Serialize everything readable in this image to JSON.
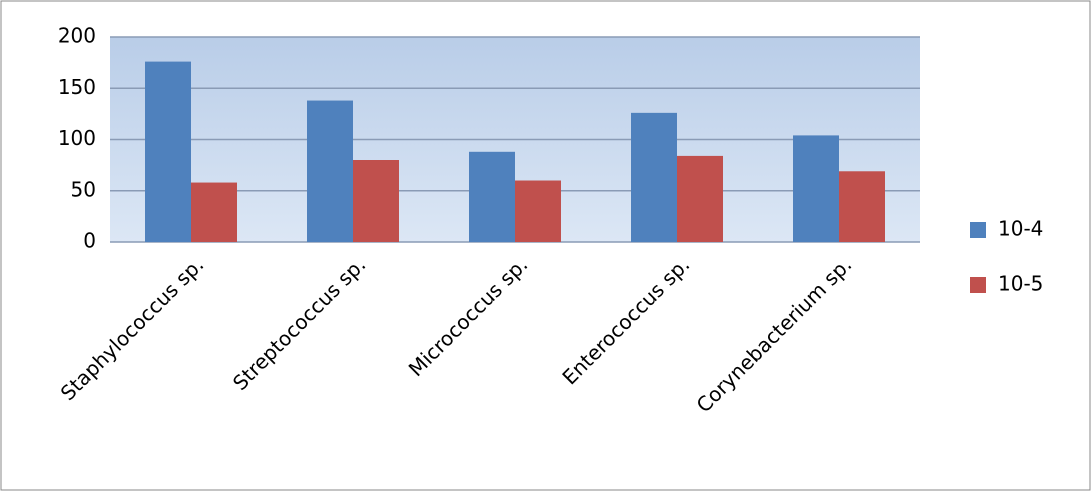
{
  "chart_data": {
    "type": "bar",
    "categories": [
      "Staphylococcus sp.",
      "Streptococcus sp.",
      "Micrococcus sp.",
      "Enterococcus sp.",
      "Corynebacterium sp."
    ],
    "series": [
      {
        "name": "10-4",
        "color": "#4f81bd",
        "values": [
          176,
          138,
          88,
          126,
          104
        ]
      },
      {
        "name": "10-5",
        "color": "#c0504d",
        "values": [
          58,
          80,
          60,
          84,
          69
        ]
      }
    ],
    "ylim": [
      0,
      200
    ],
    "yticks": [
      0,
      50,
      100,
      150,
      200
    ],
    "grid": true,
    "legend": "right"
  }
}
